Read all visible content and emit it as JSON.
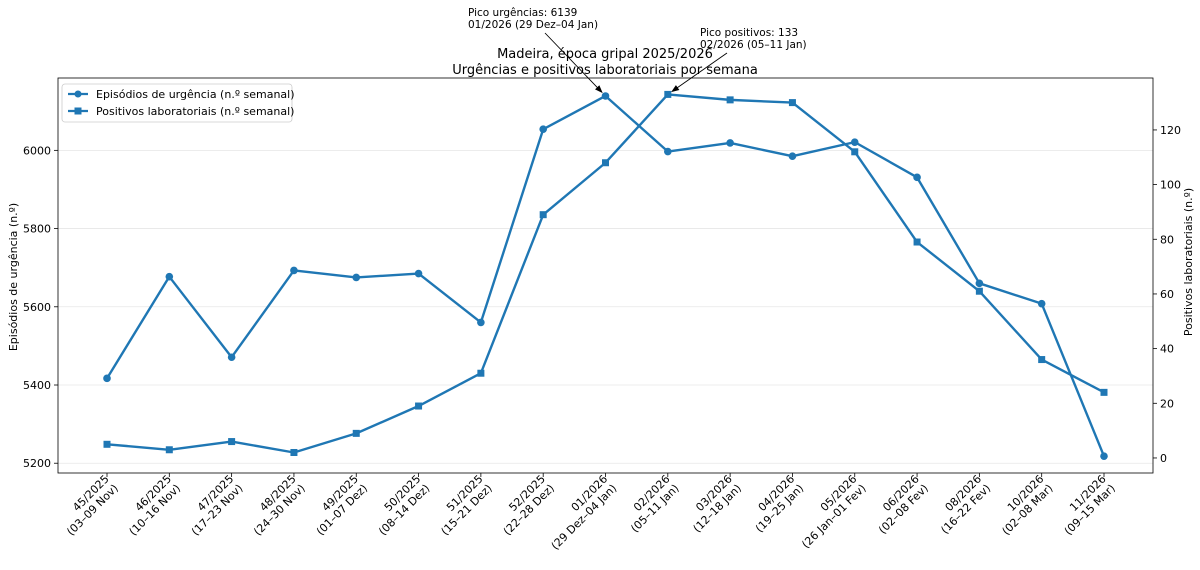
{
  "chart_data": {
    "type": "line",
    "title": "Madeira, época gripal 2025/2026",
    "subtitle": "Urgências e positivos laboratoriais por semana",
    "ylabel_left": "Episódios de urgência (n.º)",
    "ylabel_right": "Positivos laboratoriais (n.º)",
    "categories": [
      [
        "45/2025",
        "(03–09 Nov)"
      ],
      [
        "46/2025",
        "(10–16 Nov)"
      ],
      [
        "47/2025",
        "(17–23 Nov)"
      ],
      [
        "48/2025",
        "(24–30 Nov)"
      ],
      [
        "49/2025",
        "(01–07 Dez)"
      ],
      [
        "50/2025",
        "(08–14 Dez)"
      ],
      [
        "51/2025",
        "(15–21 Dez)"
      ],
      [
        "52/2025",
        "(22–28 Dez)"
      ],
      [
        "01/2026",
        "(29 Dez–04 Jan)"
      ],
      [
        "02/2026",
        "(05–11 Jan)"
      ],
      [
        "03/2026",
        "(12–18 Jan)"
      ],
      [
        "04/2026",
        "(19–25 Jan)"
      ],
      [
        "05/2026",
        "(26 Jan–01 Fev)"
      ],
      [
        "06/2026",
        "(02–08 Fev)"
      ],
      [
        "08/2026",
        "(16–22 Fev)"
      ],
      [
        "10/2026",
        "(02–08 Mar)"
      ],
      [
        "11/2026",
        "(09–15 Mar)"
      ]
    ],
    "series": [
      {
        "name": "Episódios de urgência (n.º semanal)",
        "axis": "left",
        "marker": "circle",
        "values": [
          5417,
          5677,
          5471,
          5693,
          5675,
          5685,
          5560,
          6054,
          6139,
          5997,
          6019,
          5985,
          6021,
          5931,
          5660,
          5608,
          5218
        ]
      },
      {
        "name": "Positivos laboratoriais (n.º semanal)",
        "axis": "right",
        "marker": "square",
        "values": [
          5,
          3,
          6,
          2,
          9,
          19,
          31,
          89,
          108,
          133,
          131,
          130,
          112,
          79,
          61,
          36,
          24
        ]
      }
    ],
    "ylim_left": [
      5175,
      6185
    ],
    "yticks_left": [
      5200,
      5400,
      5600,
      5800,
      6000
    ],
    "ylim_right": [
      -5.5,
      139
    ],
    "yticks_right": [
      0,
      20,
      40,
      60,
      80,
      100,
      120
    ],
    "grid": "horizontal",
    "legend": "top-left",
    "annotations": [
      {
        "lines": [
          "Pico urgências: 6139",
          "01/2026 (29 Dez–04 Jan)"
        ],
        "target_index": 8,
        "target_series": 0
      },
      {
        "lines": [
          "Pico positivos: 133",
          "02/2026 (05–11 Jan)"
        ],
        "target_index": 9,
        "target_series": 1
      }
    ],
    "color": "#1f77b4"
  }
}
